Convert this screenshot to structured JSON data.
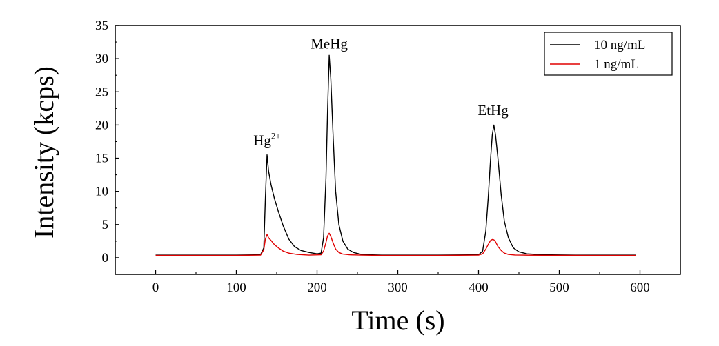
{
  "chart_data": {
    "type": "line",
    "title": "",
    "xlabel": "Time (s)",
    "ylabel": "Intensity (kcps)",
    "xlim": [
      -50,
      650
    ],
    "ylim": [
      -2.5,
      35
    ],
    "xticks": [
      0,
      100,
      200,
      300,
      400,
      500,
      600
    ],
    "yticks": [
      0,
      5,
      10,
      15,
      20,
      25,
      30,
      35
    ],
    "legend_position": "top-right",
    "grid": false,
    "annotations": [
      {
        "text": "Hg",
        "sup": "2+",
        "x": 138,
        "y": 17
      },
      {
        "text": "MeHg",
        "x": 215,
        "y": 31.5
      },
      {
        "text": "EtHg",
        "x": 418,
        "y": 21.5
      }
    ],
    "series": [
      {
        "name": "10 ng/mL",
        "color": "#000000",
        "x": [
          0,
          50,
          100,
          130,
          134,
          136,
          138,
          140,
          143,
          147,
          152,
          158,
          165,
          172,
          180,
          190,
          200,
          205,
          208,
          211,
          213,
          215,
          217,
          220,
          223,
          227,
          232,
          238,
          245,
          255,
          265,
          280,
          300,
          350,
          400,
          405,
          409,
          412,
          415,
          417,
          419,
          421,
          424,
          428,
          432,
          437,
          443,
          450,
          460,
          480,
          520,
          560,
          595
        ],
        "y": [
          0.4,
          0.4,
          0.4,
          0.45,
          1.5,
          9,
          15.5,
          13,
          11,
          9,
          7,
          4.8,
          2.8,
          1.7,
          1.1,
          0.8,
          0.6,
          0.7,
          3,
          12,
          22,
          30.5,
          27,
          18,
          10,
          5,
          2.5,
          1.3,
          0.8,
          0.5,
          0.45,
          0.4,
          0.4,
          0.4,
          0.45,
          1,
          4,
          9,
          15,
          18.5,
          20,
          18.5,
          15,
          9.5,
          5.5,
          3,
          1.5,
          0.9,
          0.6,
          0.45,
          0.4,
          0.4,
          0.4
        ]
      },
      {
        "name": "1 ng/mL",
        "color": "#e00000",
        "x": [
          0,
          50,
          100,
          130,
          134,
          136,
          138,
          140,
          143,
          147,
          152,
          158,
          165,
          175,
          190,
          205,
          208,
          211,
          213,
          215,
          217,
          220,
          223,
          227,
          232,
          240,
          255,
          280,
          350,
          400,
          405,
          409,
          412,
          415,
          417,
          419,
          421,
          424,
          428,
          432,
          437,
          445,
          455,
          480,
          540,
          595
        ],
        "y": [
          0.35,
          0.35,
          0.35,
          0.4,
          1.2,
          2.8,
          3.5,
          3.0,
          2.6,
          2.0,
          1.5,
          1.0,
          0.7,
          0.5,
          0.4,
          0.45,
          1.0,
          2.3,
          3.3,
          3.7,
          3.2,
          2.2,
          1.3,
          0.8,
          0.55,
          0.45,
          0.4,
          0.35,
          0.35,
          0.4,
          0.6,
          1.3,
          2.0,
          2.6,
          2.75,
          2.7,
          2.4,
          1.7,
          1.1,
          0.7,
          0.5,
          0.42,
          0.4,
          0.38,
          0.35,
          0.35
        ]
      }
    ]
  }
}
